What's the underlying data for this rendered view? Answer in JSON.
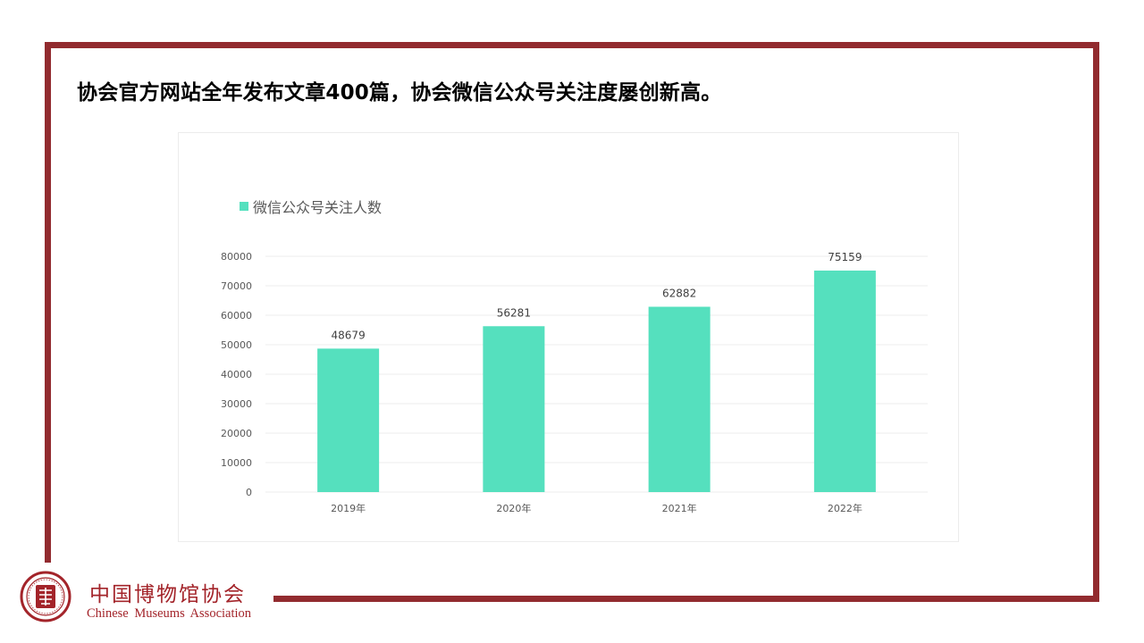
{
  "slide": {
    "title": "协会官方网站全年发布文章400篇，协会微信公众号关注度屡创新高。"
  },
  "colors": {
    "frame": "#922b2f",
    "bar": "#55e0be",
    "brand": "#a3242a"
  },
  "chart_data": {
    "type": "bar",
    "categories": [
      "2019年",
      "2020年",
      "2021年",
      "2022年"
    ],
    "series": [
      {
        "name": "微信公众号关注人数",
        "values": [
          48679,
          56281,
          62882,
          75159
        ]
      }
    ],
    "ylim": [
      0,
      80000
    ],
    "yticks": [
      0,
      10000,
      20000,
      30000,
      40000,
      50000,
      60000,
      70000,
      80000
    ],
    "grid": true,
    "legend_position": "top-left",
    "data_labels": true
  },
  "footer": {
    "logo_icon": "museums-association-seal-icon",
    "org_name_cn": "中国博物馆协会",
    "org_name_en": "Chinese Museums Association"
  }
}
